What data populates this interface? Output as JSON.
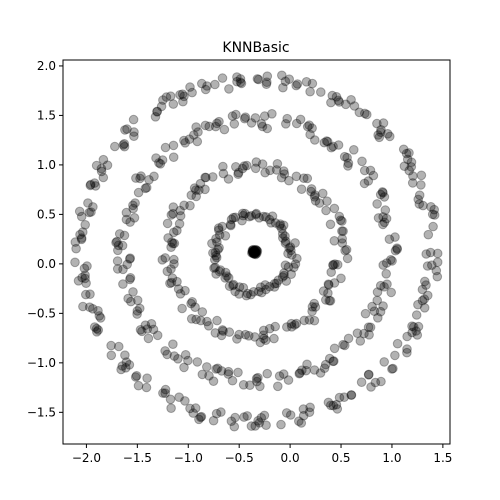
{
  "chart_data": {
    "type": "scatter",
    "title": "KNNBasic",
    "xlabel": "",
    "ylabel": "",
    "xlim": [
      -2.23,
      1.57
    ],
    "ylim": [
      -1.82,
      2.06
    ],
    "xticks": [
      -2.0,
      -1.5,
      -1.0,
      -0.5,
      0.0,
      0.5,
      1.0,
      1.5
    ],
    "xtick_labels": [
      "−2.0",
      "−1.5",
      "−1.0",
      "−0.5",
      "0.0",
      "0.5",
      "1.0",
      "1.5"
    ],
    "yticks": [
      -1.5,
      -1.0,
      -0.5,
      0.0,
      0.5,
      1.0,
      1.5,
      2.0
    ],
    "ytick_labels": [
      "−1.5",
      "−1.0",
      "−0.5",
      "0.0",
      "0.5",
      "1.0",
      "1.5",
      "2.0"
    ],
    "grid": false,
    "marker_color": "#000000",
    "marker_alpha": 0.3,
    "rings": [
      {
        "cx": -0.35,
        "cy": 0.12,
        "r": 0.02,
        "n": 24,
        "jitter": 0.01
      },
      {
        "cx": -0.36,
        "cy": 0.1,
        "r": 0.38,
        "n": 90,
        "jitter": 0.05
      },
      {
        "cx": -0.35,
        "cy": 0.12,
        "r": 0.85,
        "n": 140,
        "jitter": 0.07
      },
      {
        "cx": -0.33,
        "cy": 0.13,
        "r": 1.32,
        "n": 190,
        "jitter": 0.08
      },
      {
        "cx": -0.33,
        "cy": 0.13,
        "r": 1.73,
        "n": 230,
        "jitter": 0.07
      }
    ]
  }
}
